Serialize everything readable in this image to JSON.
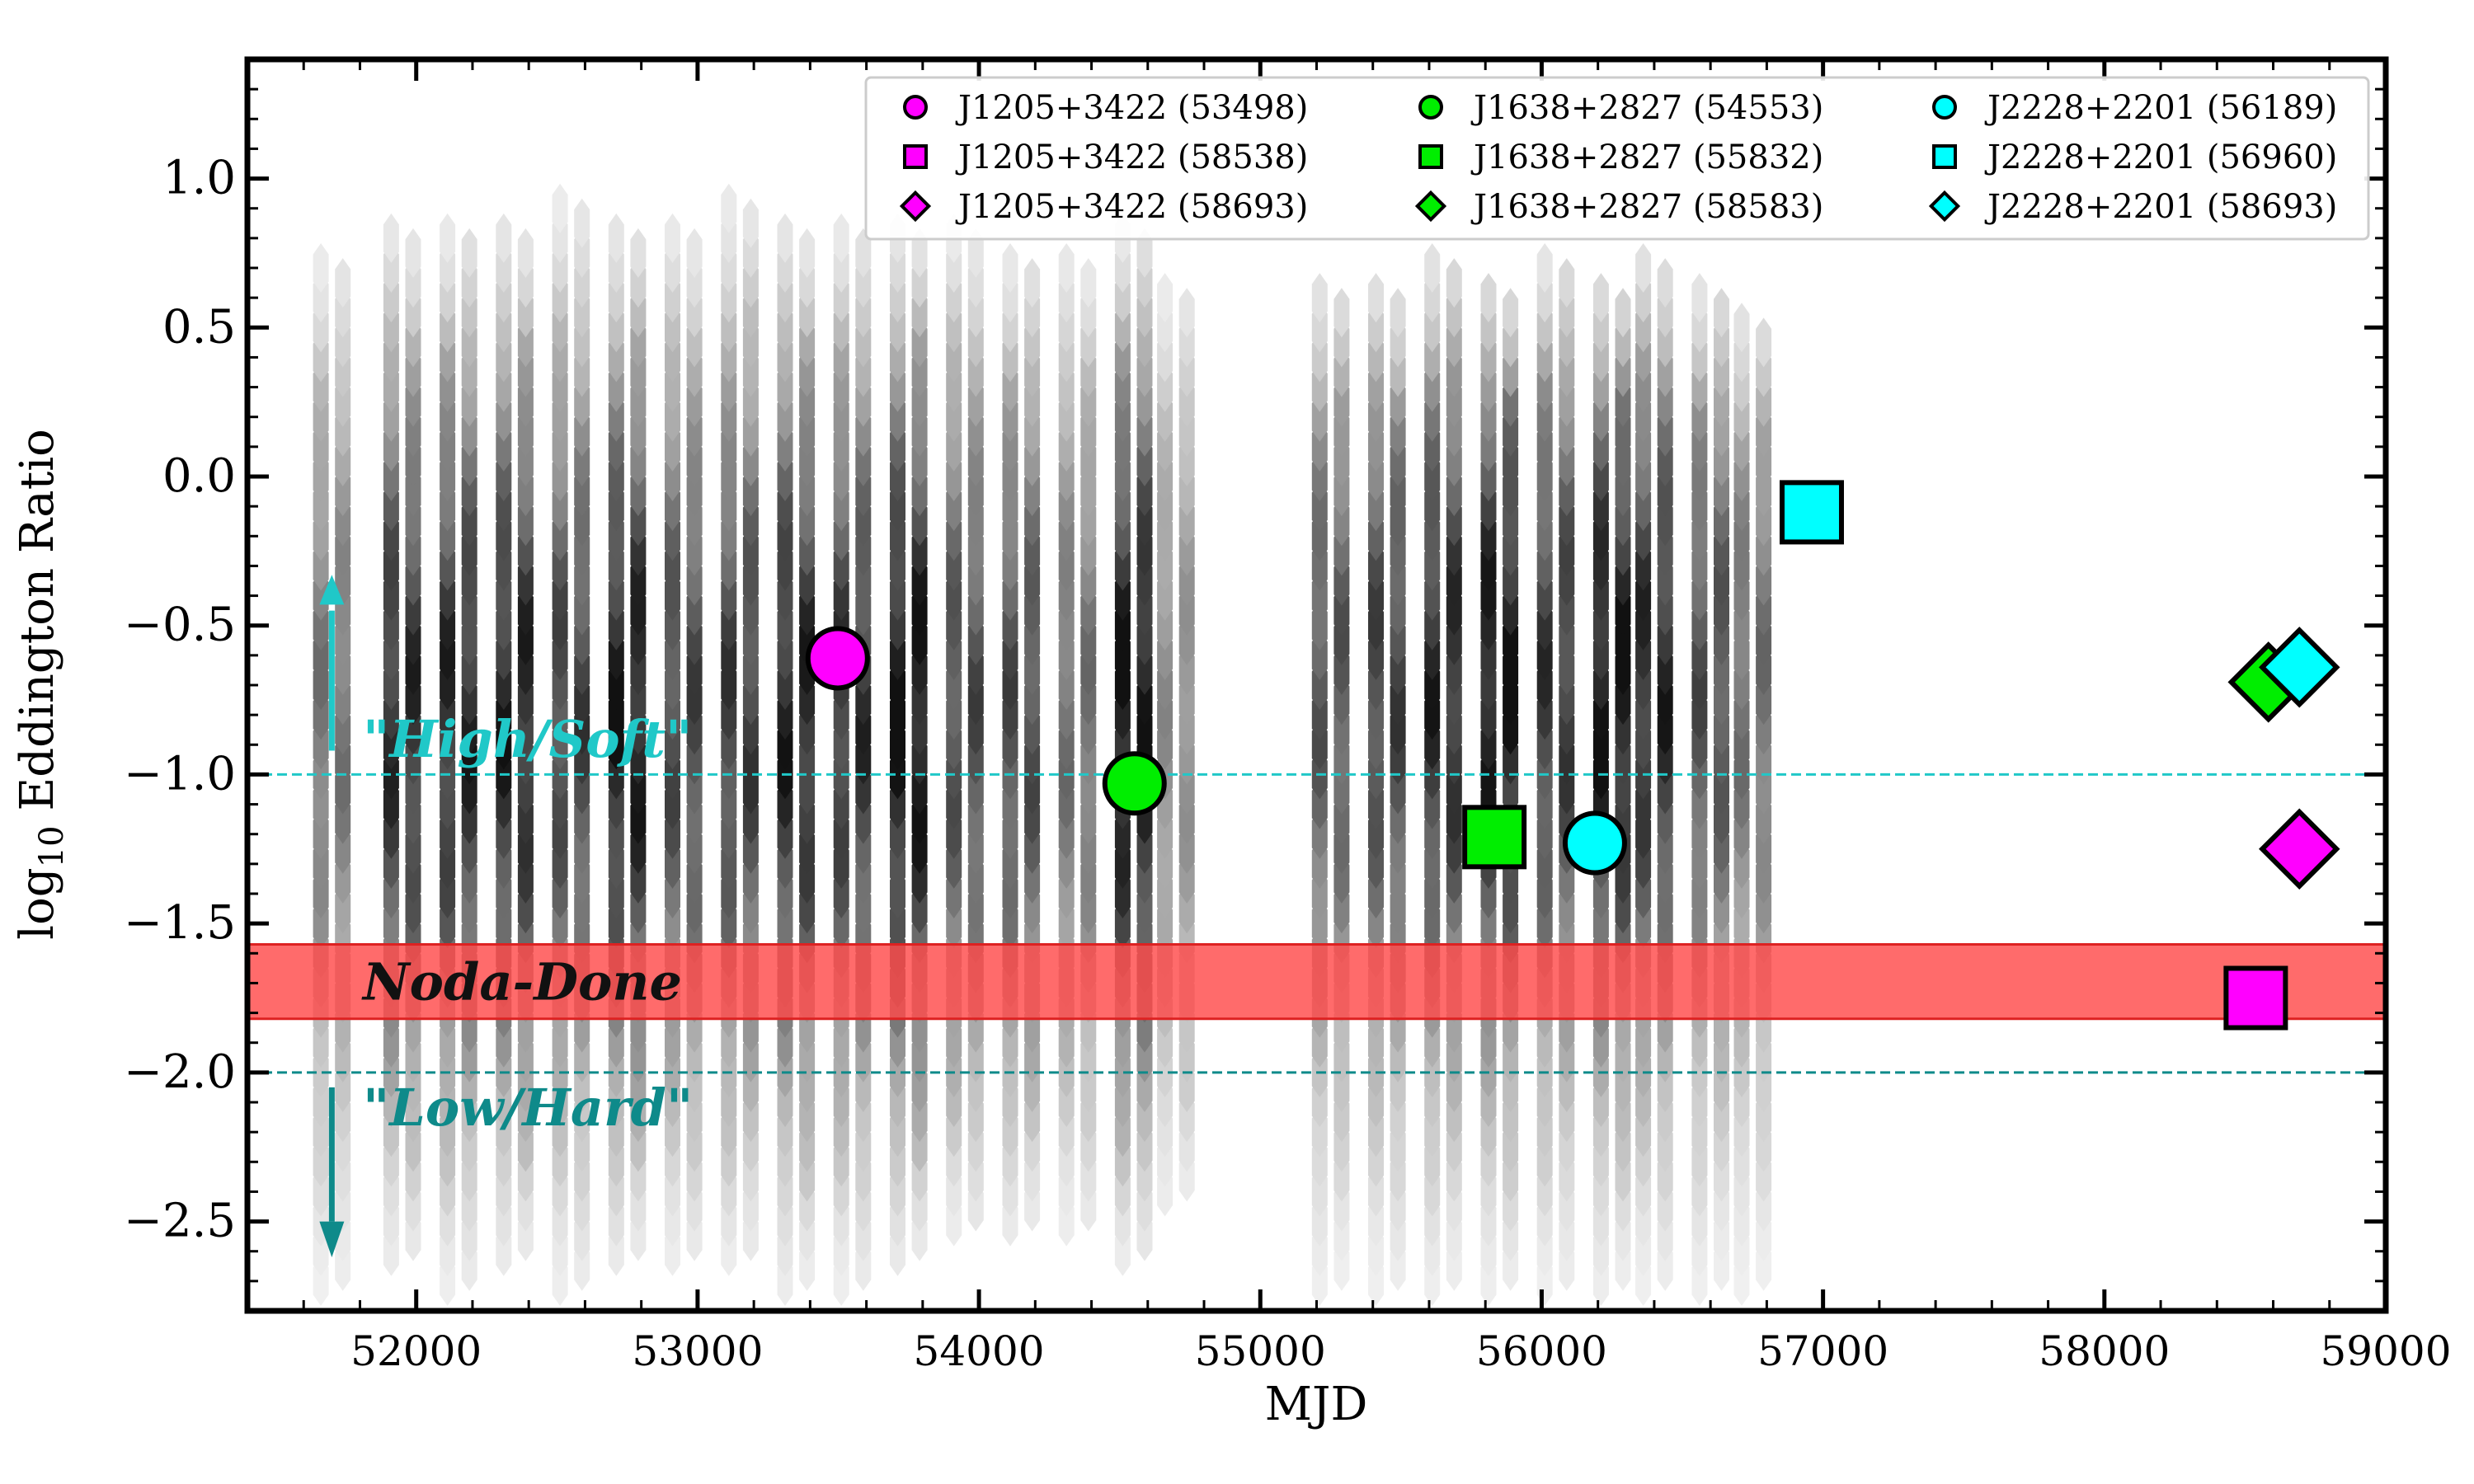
{
  "chart_data": {
    "type": "scatter",
    "xlabel": "MJD",
    "ylabel_main": "log",
    "ylabel_sub": "10",
    "ylabel_rest": " Eddington Ratio",
    "xlim": [
      51400,
      59000
    ],
    "ylim": [
      -2.8,
      1.4
    ],
    "xticks": [
      52000,
      53000,
      54000,
      55000,
      56000,
      57000,
      58000,
      59000
    ],
    "yticks": [
      -2.5,
      -2.0,
      -1.5,
      -1.0,
      -0.5,
      0.0,
      0.5,
      1.0
    ],
    "xtick_labels": [
      "52000",
      "53000",
      "54000",
      "55000",
      "56000",
      "57000",
      "58000",
      "59000"
    ],
    "ytick_labels": [
      "−2.5",
      "−2.0",
      "−1.5",
      "−1.0",
      "−0.5",
      "0.0",
      "0.5",
      "1.0"
    ],
    "noda_done_band": {
      "y0": -1.82,
      "y1": -1.57,
      "label": "Noda-Done",
      "color": "#ff4a4a"
    },
    "reference_lines": [
      {
        "y": -1.0,
        "label": "\"High/Soft\"",
        "color": "#20c8c8",
        "arrow": "up"
      },
      {
        "y": -2.0,
        "label": "\"Low/Hard\"",
        "color": "#0e8a8a",
        "arrow": "down"
      }
    ],
    "hexbin_background": {
      "colormap": "greys",
      "columns": [
        {
          "x": 51700,
          "ymin": -2.7,
          "ymax": 0.7,
          "peak": -0.8,
          "amp": 0.5
        },
        {
          "x": 51950,
          "ymin": -2.6,
          "ymax": 0.8,
          "peak": -0.8,
          "amp": 0.78
        },
        {
          "x": 52150,
          "ymin": -2.7,
          "ymax": 0.8,
          "peak": -0.8,
          "amp": 0.8
        },
        {
          "x": 52350,
          "ymin": -2.6,
          "ymax": 0.8,
          "peak": -0.8,
          "amp": 0.82
        },
        {
          "x": 52550,
          "ymin": -2.7,
          "ymax": 0.9,
          "peak": -0.8,
          "amp": 0.7
        },
        {
          "x": 52750,
          "ymin": -2.6,
          "ymax": 0.8,
          "peak": -0.8,
          "amp": 0.86
        },
        {
          "x": 52950,
          "ymin": -2.6,
          "ymax": 0.8,
          "peak": -0.8,
          "amp": 0.68
        },
        {
          "x": 53150,
          "ymin": -2.6,
          "ymax": 0.9,
          "peak": -0.8,
          "amp": 0.72
        },
        {
          "x": 53350,
          "ymin": -2.7,
          "ymax": 0.8,
          "peak": -0.8,
          "amp": 0.82
        },
        {
          "x": 53550,
          "ymin": -2.7,
          "ymax": 0.8,
          "peak": -0.8,
          "amp": 0.76
        },
        {
          "x": 53750,
          "ymin": -2.6,
          "ymax": 0.8,
          "peak": -0.8,
          "amp": 0.9
        },
        {
          "x": 53950,
          "ymin": -2.5,
          "ymax": 0.8,
          "peak": -0.8,
          "amp": 0.66
        },
        {
          "x": 54150,
          "ymin": -2.5,
          "ymax": 0.7,
          "peak": -0.8,
          "amp": 0.66
        },
        {
          "x": 54350,
          "ymin": -2.5,
          "ymax": 0.7,
          "peak": -0.8,
          "amp": 0.52
        },
        {
          "x": 54550,
          "ymin": -2.6,
          "ymax": 0.8,
          "peak": -0.8,
          "amp": 0.9
        },
        {
          "x": 54700,
          "ymin": -2.4,
          "ymax": 0.6,
          "peak": -0.8,
          "amp": 0.4
        },
        {
          "x": 55250,
          "ymin": -2.7,
          "ymax": 0.6,
          "peak": -0.7,
          "amp": 0.62
        },
        {
          "x": 55450,
          "ymin": -2.7,
          "ymax": 0.6,
          "peak": -0.7,
          "amp": 0.7
        },
        {
          "x": 55650,
          "ymin": -2.7,
          "ymax": 0.7,
          "peak": -0.7,
          "amp": 0.8
        },
        {
          "x": 55850,
          "ymin": -2.7,
          "ymax": 0.6,
          "peak": -0.7,
          "amp": 0.88
        },
        {
          "x": 56050,
          "ymin": -2.7,
          "ymax": 0.7,
          "peak": -0.7,
          "amp": 0.74
        },
        {
          "x": 56250,
          "ymin": -2.7,
          "ymax": 0.6,
          "peak": -0.7,
          "amp": 0.88
        },
        {
          "x": 56400,
          "ymin": -2.7,
          "ymax": 0.7,
          "peak": -0.7,
          "amp": 0.8
        },
        {
          "x": 56600,
          "ymin": -2.7,
          "ymax": 0.6,
          "peak": -0.7,
          "amp": 0.64
        },
        {
          "x": 56750,
          "ymin": -2.7,
          "ymax": 0.5,
          "peak": -0.7,
          "amp": 0.52
        }
      ]
    },
    "series": [
      {
        "name": "J1205+3422 (53498)",
        "x": 53498,
        "y": -0.61,
        "marker": "circle",
        "color": "#ff00ff"
      },
      {
        "name": "J1205+3422 (58538)",
        "x": 58538,
        "y": -1.75,
        "marker": "square",
        "color": "#ff00ff"
      },
      {
        "name": "J1205+3422 (58693)",
        "x": 58693,
        "y": -1.25,
        "marker": "diamond",
        "color": "#ff00ff"
      },
      {
        "name": "J1638+2827 (54553)",
        "x": 54553,
        "y": -1.03,
        "marker": "circle",
        "color": "#00ee00"
      },
      {
        "name": "J1638+2827 (55832)",
        "x": 55832,
        "y": -1.21,
        "marker": "square",
        "color": "#00ee00"
      },
      {
        "name": "J1638+2827 (58583)",
        "x": 58583,
        "y": -0.69,
        "marker": "diamond",
        "color": "#00ee00"
      },
      {
        "name": "J2228+2201 (56189)",
        "x": 56189,
        "y": -1.23,
        "marker": "circle",
        "color": "#00ffff"
      },
      {
        "name": "J2228+2201 (56960)",
        "x": 56960,
        "y": -0.12,
        "marker": "square",
        "color": "#00ffff"
      },
      {
        "name": "J2228+2201 (58693)",
        "x": 58693,
        "y": -0.64,
        "marker": "diamond",
        "color": "#00ffff"
      }
    ],
    "legend": {
      "placement": "top-right",
      "columns": 3
    }
  }
}
